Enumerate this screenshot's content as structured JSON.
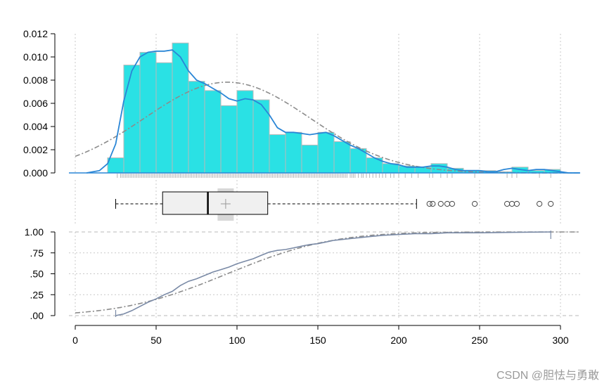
{
  "chart_data": {
    "type": "histogram",
    "x": {
      "min": 0,
      "max": 300,
      "ticks": [
        0,
        50,
        100,
        150,
        200,
        250,
        300
      ]
    },
    "histogram": {
      "y_ticks": [
        "0.000",
        "0.002",
        "0.004",
        "0.006",
        "0.008",
        "0.010",
        "0.012"
      ],
      "ylim": [
        0,
        0.012
      ],
      "bin_edges": [
        20,
        30,
        40,
        50,
        60,
        70,
        80,
        90,
        100,
        110,
        120,
        130,
        140,
        150,
        160,
        170,
        180,
        190,
        200,
        210,
        220,
        230,
        240,
        250,
        260,
        270,
        280,
        290,
        300
      ],
      "density": [
        0.0013,
        0.0093,
        0.0104,
        0.0095,
        0.0112,
        0.0079,
        0.0071,
        0.0058,
        0.0071,
        0.0063,
        0.0033,
        0.0035,
        0.0024,
        0.0035,
        0.0027,
        0.0021,
        0.0013,
        0.0008,
        0.0006,
        0.0005,
        0.0008,
        0.0004,
        0.0002,
        0.0002,
        0.0001,
        0.0005,
        0.0002,
        0.0003
      ],
      "bar_color": "#2ae1e4",
      "kde": [
        [
          7,
          0.0
        ],
        [
          15,
          0.0002
        ],
        [
          20,
          0.0008
        ],
        [
          25,
          0.0025
        ],
        [
          30,
          0.0062
        ],
        [
          35,
          0.0088
        ],
        [
          40,
          0.01
        ],
        [
          45,
          0.0104
        ],
        [
          50,
          0.0105
        ],
        [
          55,
          0.0105
        ],
        [
          60,
          0.0106
        ],
        [
          65,
          0.01
        ],
        [
          70,
          0.0088
        ],
        [
          75,
          0.008
        ],
        [
          80,
          0.0077
        ],
        [
          85,
          0.0073
        ],
        [
          90,
          0.0069
        ],
        [
          95,
          0.0064
        ],
        [
          100,
          0.0062
        ],
        [
          105,
          0.0064
        ],
        [
          110,
          0.0063
        ],
        [
          115,
          0.0059
        ],
        [
          120,
          0.005
        ],
        [
          125,
          0.0039
        ],
        [
          130,
          0.0035
        ],
        [
          135,
          0.0035
        ],
        [
          140,
          0.0034
        ],
        [
          145,
          0.0033
        ],
        [
          150,
          0.0034
        ],
        [
          155,
          0.0035
        ],
        [
          160,
          0.0032
        ],
        [
          165,
          0.0028
        ],
        [
          170,
          0.0024
        ],
        [
          175,
          0.0021
        ],
        [
          180,
          0.0017
        ],
        [
          185,
          0.0013
        ],
        [
          190,
          0.001
        ],
        [
          195,
          0.0008
        ],
        [
          200,
          0.0007
        ],
        [
          205,
          0.0005
        ],
        [
          210,
          0.0005
        ],
        [
          215,
          0.0005
        ],
        [
          220,
          0.0006
        ],
        [
          225,
          0.0006
        ],
        [
          230,
          0.0005
        ],
        [
          235,
          0.0003
        ],
        [
          240,
          0.0002
        ],
        [
          245,
          0.0002
        ],
        [
          250,
          0.0002
        ],
        [
          255,
          0.0001
        ],
        [
          260,
          0.0001
        ],
        [
          265,
          0.0003
        ],
        [
          270,
          0.0004
        ],
        [
          275,
          0.0003
        ],
        [
          280,
          0.0002
        ],
        [
          285,
          0.0003
        ],
        [
          290,
          0.0003
        ],
        [
          295,
          0.0002
        ],
        [
          300,
          0.0001
        ],
        [
          305,
          0.0
        ],
        [
          312,
          0.0
        ]
      ],
      "kde_color": "#2a86d6",
      "normal": {
        "mean": 94,
        "sd": 51,
        "color": "#8c8c8c"
      },
      "rug": [
        26,
        28,
        29,
        30,
        31,
        32,
        33,
        34,
        35,
        36,
        37,
        38,
        39,
        40,
        41,
        42,
        43,
        44,
        45,
        46,
        47,
        48,
        49,
        50,
        51,
        52,
        53,
        54,
        55,
        56,
        57,
        58,
        59,
        60,
        61,
        62,
        63,
        64,
        65,
        66,
        67,
        68,
        69,
        70,
        71,
        72,
        73,
        74,
        75,
        76,
        77,
        78,
        79,
        80,
        81,
        82,
        83,
        84,
        85,
        86,
        87,
        88,
        89,
        90,
        91,
        92,
        93,
        94,
        95,
        96,
        97,
        98,
        99,
        100,
        101,
        102,
        103,
        104,
        105,
        106,
        107,
        108,
        109,
        110,
        111,
        112,
        113,
        114,
        115,
        116,
        117,
        118,
        119,
        120,
        121,
        122,
        123,
        124,
        125,
        126,
        127,
        128,
        129,
        130,
        131,
        132,
        133,
        134,
        135,
        136,
        137,
        138,
        139,
        140,
        141,
        142,
        143,
        144,
        145,
        146,
        147,
        148,
        149,
        150,
        151,
        152,
        153,
        154,
        155,
        156,
        157,
        158,
        159,
        160,
        161,
        162,
        163,
        164,
        165,
        166,
        167,
        168,
        170,
        171,
        172,
        173,
        175,
        177,
        178,
        180,
        182,
        184,
        186,
        188,
        190,
        192,
        195,
        197,
        200,
        204,
        208,
        212,
        219,
        221,
        226,
        230,
        233,
        247,
        267,
        270,
        273,
        287,
        294
      ]
    },
    "boxplot": {
      "whisker_low": 25,
      "q1": 54,
      "median": 82,
      "q3": 119,
      "whisker_high": 211,
      "mean": 93,
      "mean_ci": [
        88,
        98
      ],
      "outliers": [
        219,
        221,
        226,
        230,
        233,
        247,
        267,
        270,
        273,
        287,
        294
      ],
      "box_color": "#f0f0f0"
    },
    "ecdf": {
      "y_ticks": [
        "1.00",
        ".75",
        ".50",
        ".25",
        ".00"
      ],
      "ylim": [
        0,
        1
      ],
      "empirical": [
        [
          25,
          0.0
        ],
        [
          30,
          0.02
        ],
        [
          35,
          0.06
        ],
        [
          40,
          0.11
        ],
        [
          45,
          0.16
        ],
        [
          50,
          0.2
        ],
        [
          55,
          0.25
        ],
        [
          60,
          0.29
        ],
        [
          65,
          0.36
        ],
        [
          70,
          0.41
        ],
        [
          75,
          0.44
        ],
        [
          80,
          0.48
        ],
        [
          85,
          0.52
        ],
        [
          90,
          0.55
        ],
        [
          95,
          0.58
        ],
        [
          100,
          0.62
        ],
        [
          105,
          0.65
        ],
        [
          110,
          0.68
        ],
        [
          115,
          0.72
        ],
        [
          120,
          0.76
        ],
        [
          125,
          0.78
        ],
        [
          130,
          0.79
        ],
        [
          135,
          0.81
        ],
        [
          140,
          0.83
        ],
        [
          145,
          0.85
        ],
        [
          150,
          0.86
        ],
        [
          155,
          0.88
        ],
        [
          160,
          0.9
        ],
        [
          165,
          0.91
        ],
        [
          170,
          0.92
        ],
        [
          175,
          0.93
        ],
        [
          180,
          0.94
        ],
        [
          185,
          0.95
        ],
        [
          190,
          0.96
        ],
        [
          200,
          0.97
        ],
        [
          210,
          0.98
        ],
        [
          220,
          0.98
        ],
        [
          230,
          0.99
        ],
        [
          250,
          0.99
        ],
        [
          270,
          0.995
        ],
        [
          294,
          1.0
        ]
      ],
      "empirical_color": "#7a8aa6",
      "normal_color": "#8c8c8c"
    }
  },
  "watermark": "CSDN @胆怯与勇敢"
}
